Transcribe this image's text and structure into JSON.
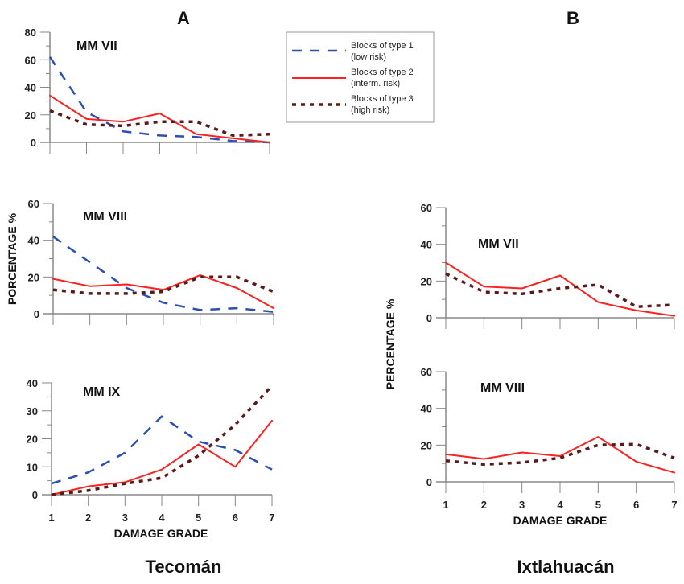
{
  "panel_labels": {
    "a": "A",
    "b": "B"
  },
  "site_labels": {
    "a": "Tecomán",
    "b": "Ixtlahuacán"
  },
  "x_axis_label": "DAMAGE GRADE",
  "y_axis_label_a": "PORCENTAGE %",
  "y_axis_label_b": "PERCENTAGE %",
  "legend": [
    {
      "line1": "Blocks of type 1",
      "line2": "(low risk)"
    },
    {
      "line1": "Blocks of type 2",
      "line2": "(interm. risk)"
    },
    {
      "line1": "Blocks of type 3",
      "line2": "(high risk)"
    }
  ],
  "colors": {
    "type1": "#2a4fb0",
    "type2": "#ff2020",
    "type3": "#5a1a1a"
  },
  "chart_data": [
    {
      "type": "line",
      "id": "a1",
      "title": "MM VII",
      "site": "Tecomán",
      "xlabel": "",
      "ylabel": "",
      "x": [
        1,
        2,
        3,
        4,
        5,
        6,
        7
      ],
      "ylim": [
        0,
        80
      ],
      "yticks": [
        0,
        20,
        40,
        60,
        80
      ],
      "series": [
        {
          "name": "Blocks of type 1 (low risk)",
          "values": [
            62,
            22,
            8,
            5,
            4,
            1,
            0
          ]
        },
        {
          "name": "Blocks of type 2 (interm. risk)",
          "values": [
            34,
            17,
            15,
            21,
            6,
            3,
            0
          ]
        },
        {
          "name": "Blocks of type 3 (high risk)",
          "values": [
            23,
            13,
            12,
            15,
            15,
            5,
            6
          ]
        }
      ]
    },
    {
      "type": "line",
      "id": "a2",
      "title": "MM VIII",
      "site": "Tecomán",
      "xlabel": "",
      "ylabel": "PORCENTAGE %",
      "x": [
        1,
        2,
        3,
        4,
        5,
        6,
        7
      ],
      "ylim": [
        0,
        60
      ],
      "yticks": [
        0,
        20,
        40,
        60
      ],
      "series": [
        {
          "name": "Blocks of type 1 (low risk)",
          "values": [
            42,
            28,
            14,
            6,
            2,
            3,
            1
          ]
        },
        {
          "name": "Blocks of type 2 (interm. risk)",
          "values": [
            19,
            15,
            16,
            13,
            21,
            14,
            3
          ]
        },
        {
          "name": "Blocks of type 3 (high risk)",
          "values": [
            13,
            11,
            11,
            12,
            20,
            20,
            12
          ]
        }
      ]
    },
    {
      "type": "line",
      "id": "a3",
      "title": "MM IX",
      "site": "Tecomán",
      "xlabel": "DAMAGE GRADE",
      "ylabel": "",
      "x": [
        1,
        2,
        3,
        4,
        5,
        6,
        7
      ],
      "ylim": [
        0,
        40
      ],
      "yticks": [
        0,
        10,
        20,
        30,
        40
      ],
      "series": [
        {
          "name": "Blocks of type 1 (low risk)",
          "values": [
            4,
            8,
            15,
            28,
            19,
            16,
            9
          ]
        },
        {
          "name": "Blocks of type 2 (interm. risk)",
          "values": [
            0,
            3,
            4.5,
            9,
            18,
            10,
            26.5
          ]
        },
        {
          "name": "Blocks of type 3 (high risk)",
          "values": [
            0,
            1.5,
            4,
            6,
            14,
            25,
            39
          ]
        }
      ]
    },
    {
      "type": "line",
      "id": "b1",
      "title": "MM VII",
      "site": "Ixtlahuacán",
      "xlabel": "",
      "ylabel": "",
      "x": [
        1,
        2,
        3,
        4,
        5,
        6,
        7
      ],
      "ylim": [
        0,
        60
      ],
      "yticks": [
        0,
        20,
        40,
        60
      ],
      "series": [
        {
          "name": "Blocks of type 2 (interm. risk)",
          "values": [
            30,
            17,
            16,
            23,
            8.5,
            4,
            1
          ]
        },
        {
          "name": "Blocks of type 3 (high risk)",
          "values": [
            24,
            14,
            13,
            16,
            18,
            6,
            7
          ]
        }
      ]
    },
    {
      "type": "line",
      "id": "b2",
      "title": "MM VIII",
      "site": "Ixtlahuacán",
      "xlabel": "DAMAGE GRADE",
      "ylabel": "PERCENTAGE %",
      "x": [
        1,
        2,
        3,
        4,
        5,
        6,
        7
      ],
      "ylim": [
        0,
        60
      ],
      "yticks": [
        0,
        20,
        40,
        60
      ],
      "series": [
        {
          "name": "Blocks of type 2 (interm. risk)",
          "values": [
            15,
            12.5,
            16,
            14,
            24.5,
            11,
            5
          ]
        },
        {
          "name": "Blocks of type 3 (high risk)",
          "values": [
            11.5,
            9.5,
            10.5,
            13,
            20,
            20.5,
            13
          ]
        }
      ]
    }
  ]
}
